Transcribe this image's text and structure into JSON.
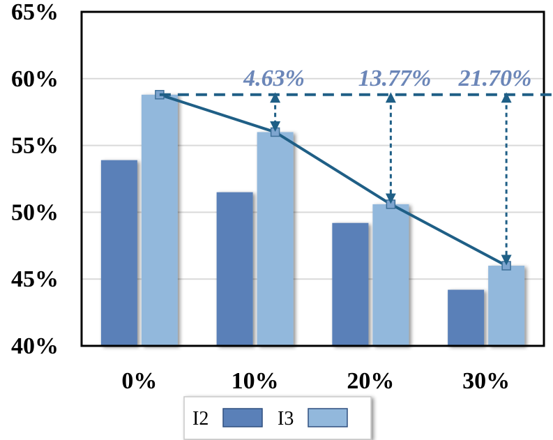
{
  "chart_data": {
    "type": "bar",
    "categories": [
      "0%",
      "10%",
      "20%",
      "30%"
    ],
    "series": [
      {
        "name": "I2",
        "values": [
          53.9,
          51.5,
          49.2,
          44.2
        ],
        "color": "#5a80b8"
      },
      {
        "name": "I3",
        "values": [
          58.8,
          56.0,
          50.6,
          46.0
        ],
        "color": "#92b8dc"
      }
    ],
    "ylim": [
      40,
      65
    ],
    "yticks": [
      40,
      45,
      50,
      55,
      60,
      65
    ],
    "ytick_labels": [
      "40%",
      "45%",
      "50%",
      "55%",
      "60%",
      "65%"
    ],
    "grid": true,
    "legend_position": "bottom",
    "trend_line": {
      "series": "I3",
      "color": "#1f5f86"
    },
    "reference_value": 58.8,
    "annotations": [
      {
        "category": "10%",
        "text": "4.63%"
      },
      {
        "category": "20%",
        "text": "13.77%"
      },
      {
        "category": "30%",
        "text": "21.70%"
      }
    ],
    "annotation_color": "#6b86b8"
  }
}
